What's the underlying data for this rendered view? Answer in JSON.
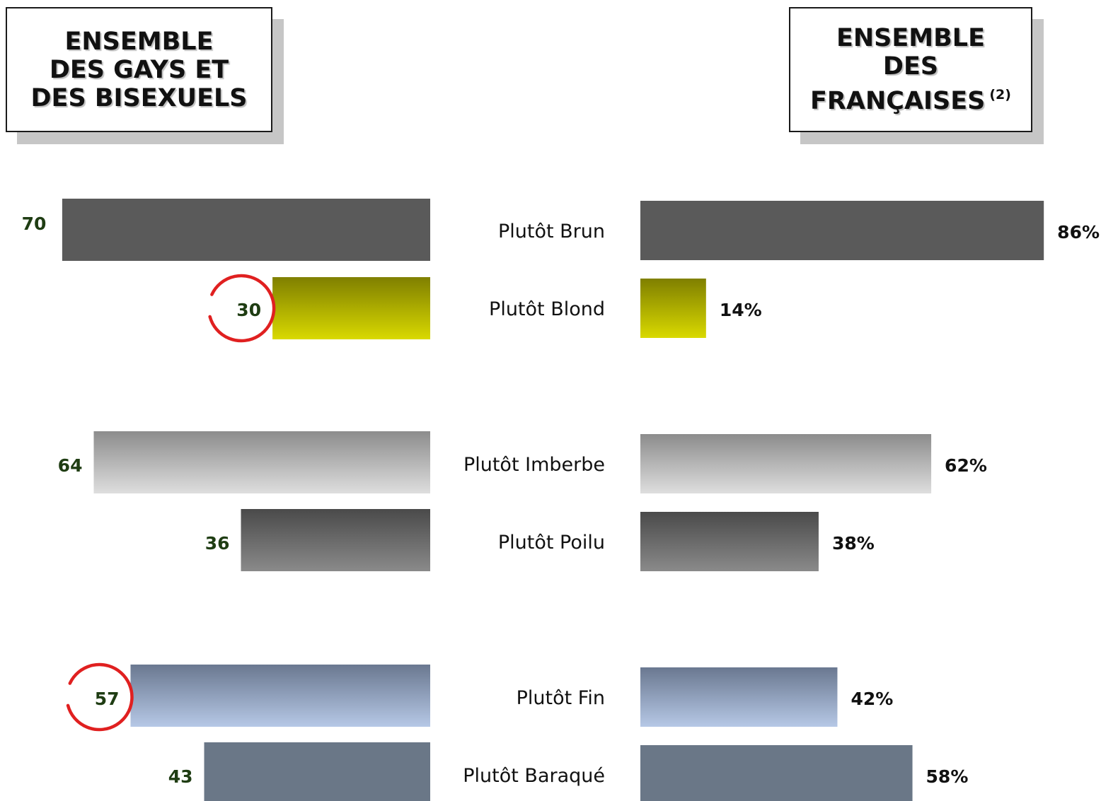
{
  "titles": {
    "left": "ENSEMBLE\nDES GAYS ET\nDES BISEXUELS",
    "right": "ENSEMBLE\nDES\nFRANÇAISES",
    "right_note": "(2)"
  },
  "chart_data": {
    "type": "bar",
    "orientation": "horizontal-butterfly",
    "categories": [
      "Plutôt Brun",
      "Plutôt Blond",
      "Plutôt Imberbe",
      "Plutôt Poilu",
      "Plutôt Fin",
      "Plutôt Baraqué"
    ],
    "series": [
      {
        "values": [
          70,
          30,
          64,
          36,
          57,
          43
        ],
        "labels": [
          "70",
          "30",
          "64",
          "36",
          "57",
          "43"
        ]
      },
      {
        "values": [
          86,
          14,
          62,
          38,
          42,
          58
        ],
        "labels": [
          "86%",
          "14%",
          "62%",
          "38%",
          "42%",
          "58%"
        ]
      }
    ],
    "highlighted": [
      {
        "series": 0,
        "category": "Plutôt Blond"
      },
      {
        "series": 0,
        "category": "Plutôt Fin"
      }
    ],
    "colors": {
      "brun": "#5a5a5a",
      "blond": [
        "#7f7f00",
        "#d9d900"
      ],
      "imberbe": [
        "#8c8c8c",
        "#dedede"
      ],
      "poilu": [
        "#4a4a4a",
        "#8a8a8a"
      ],
      "fin": [
        "#6a7890",
        "#b6c8e6"
      ],
      "baraque": "#6a7787",
      "left_label": "#1f3d13",
      "right_label": "#111111",
      "highlight": "#e02020"
    }
  }
}
